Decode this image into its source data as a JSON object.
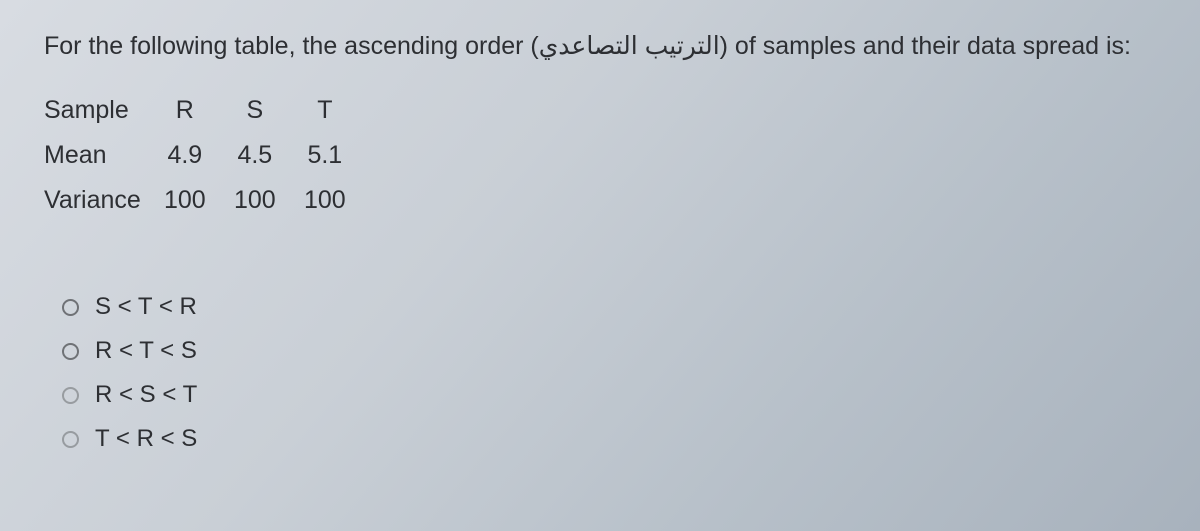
{
  "question": {
    "prefix": "For the following table, the ascending order (",
    "arabic": "الترتيب التصاعدي",
    "suffix": ") of samples and their data spread is:"
  },
  "table": {
    "header_label": "Sample",
    "columns": [
      "R",
      "S",
      "T"
    ],
    "rows": [
      {
        "label": "Mean",
        "values": [
          "4.9",
          "4.5",
          "5.1"
        ]
      },
      {
        "label": "Variance",
        "values": [
          "100",
          "100",
          "100"
        ]
      }
    ]
  },
  "options": [
    {
      "text": "S < T < R"
    },
    {
      "text": "R < T < S"
    },
    {
      "text": "R < S < T"
    },
    {
      "text": "T < R < S"
    }
  ]
}
